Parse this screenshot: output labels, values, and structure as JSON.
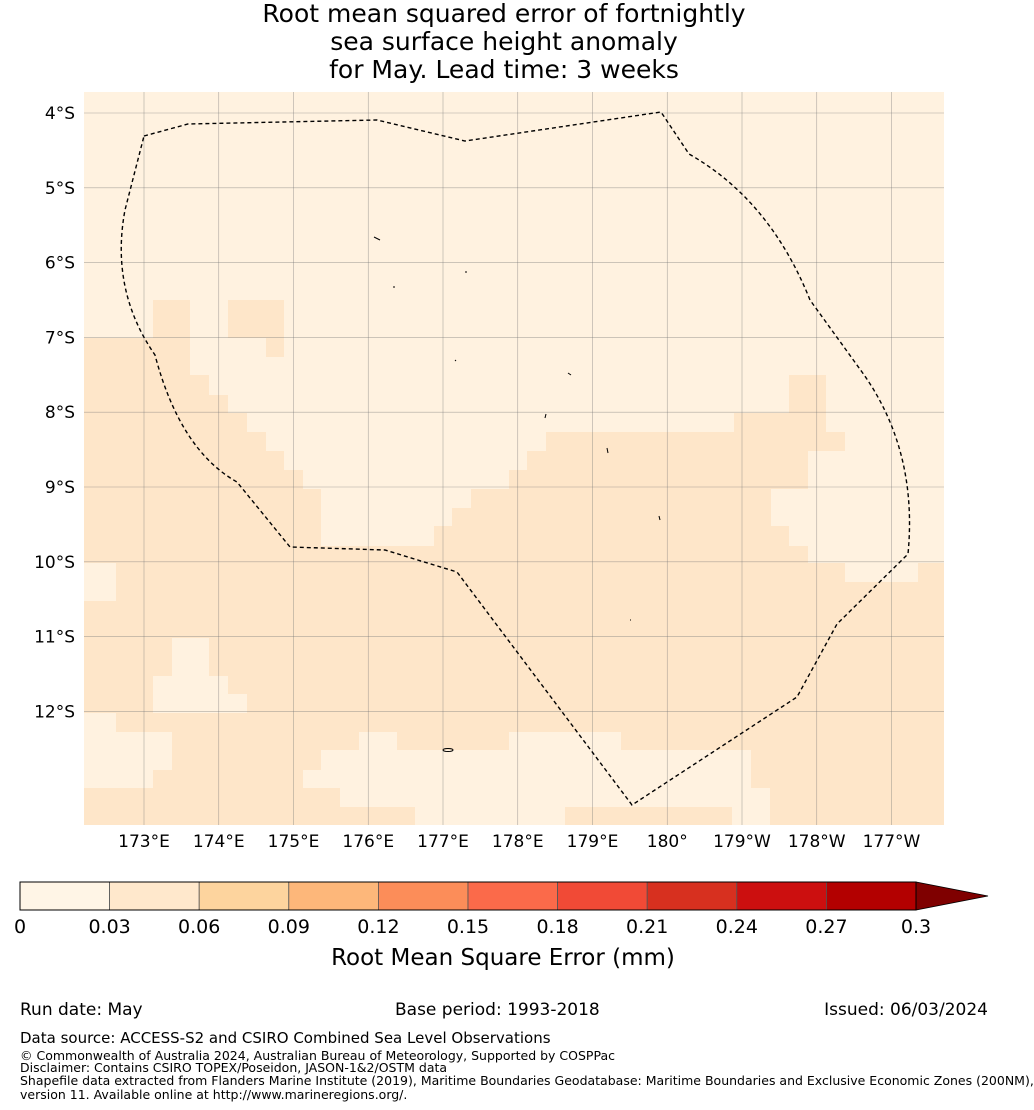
{
  "title": {
    "line1": "Root mean squared error of fortnightly",
    "line2": "sea surface height anomaly",
    "line3": "for May. Lead time: 3 weeks"
  },
  "map": {
    "lat_labels": [
      "4°S",
      "5°S",
      "6°S",
      "7°S",
      "8°S",
      "9°S",
      "10°S",
      "11°S",
      "12°S"
    ],
    "lon_labels": [
      "173°E",
      "174°E",
      "175°E",
      "176°E",
      "177°E",
      "178°E",
      "179°E",
      "180°",
      "179°W",
      "178°W",
      "177°W"
    ],
    "colors": {
      "lightest": "#fff2e0",
      "light": "#fee6c9"
    },
    "boundary_style": "dashed",
    "gridlines": true
  },
  "colorbar": {
    "ticks": [
      "0",
      "0.03",
      "0.06",
      "0.09",
      "0.12",
      "0.15",
      "0.18",
      "0.21",
      "0.24",
      "0.27",
      "0.3"
    ],
    "colors": [
      "#fff5e6",
      "#ffe8cc",
      "#fdd49e",
      "#fdb77a",
      "#fc8d59",
      "#fb6a4a",
      "#f14a36",
      "#d7301f",
      "#cc0f0f",
      "#b30000",
      "#7f0000"
    ],
    "label": "Root Mean Square Error (mm)",
    "extend": "max"
  },
  "footer": {
    "run_date": "Run date: May",
    "base_period": "Base period: 1993-2018",
    "issued": "Issued: 06/03/2024",
    "data_source": "Data source: ACCESS-S2 and CSIRO Combined Sea Level Observations",
    "copyright": "© Commonwealth of Australia 2024, Australian Bureau of Meteorology, Supported by COSPPac",
    "disclaimer": "Disclaimer: Contains CSIRO TOPEX/Poseidon, JASON-1&2/OSTM data",
    "shapefile_1": "Shapefile data extracted from Flanders Marine Institute (2019), Maritime Boundaries Geodatabase: Maritime Boundaries and Exclusive Economic Zones (200NM),",
    "shapefile_2": "version 11. Available online at http://www.marineregions.org/."
  }
}
